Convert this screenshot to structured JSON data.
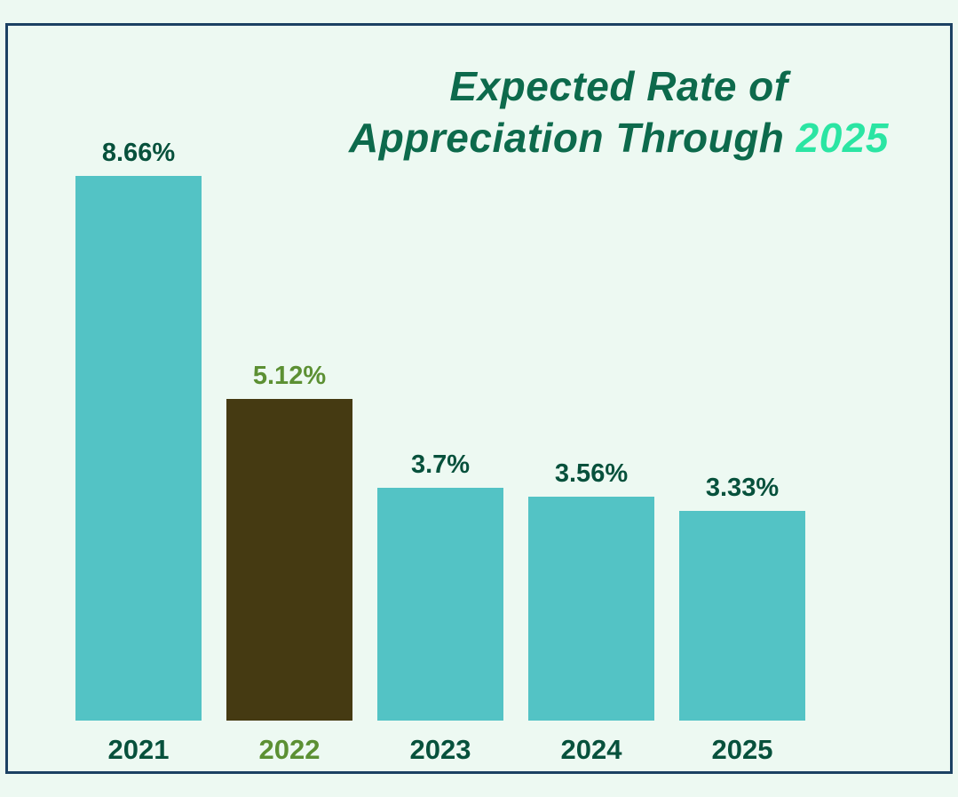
{
  "frame": {
    "background_color": "#edf9f2",
    "border_color": "#1c4163"
  },
  "title": {
    "line1": "Expected Rate of",
    "line2_prefix": "Appreciation Through ",
    "line2_highlight": "2025",
    "text_color": "#0d6a4c",
    "highlight_color": "#2be5a3"
  },
  "chart_data": {
    "type": "bar",
    "title": "Expected Rate of Appreciation Through 2025",
    "categories": [
      "2021",
      "2022",
      "2023",
      "2024",
      "2025"
    ],
    "values": [
      8.66,
      5.12,
      3.7,
      3.56,
      3.33
    ],
    "value_labels": [
      "8.66%",
      "5.12%",
      "3.7%",
      "3.56%",
      "3.33%"
    ],
    "xlabel": "",
    "ylabel": "",
    "ylim": [
      0,
      9
    ],
    "grid": false,
    "legend": false,
    "bar_colors": [
      "#53c3c5",
      "#453a12",
      "#53c3c5",
      "#53c3c5",
      "#53c3c5"
    ],
    "label_colors": [
      "#07513c",
      "#5c9033",
      "#07513c",
      "#07513c",
      "#07513c"
    ],
    "highlighted_index": 1
  }
}
